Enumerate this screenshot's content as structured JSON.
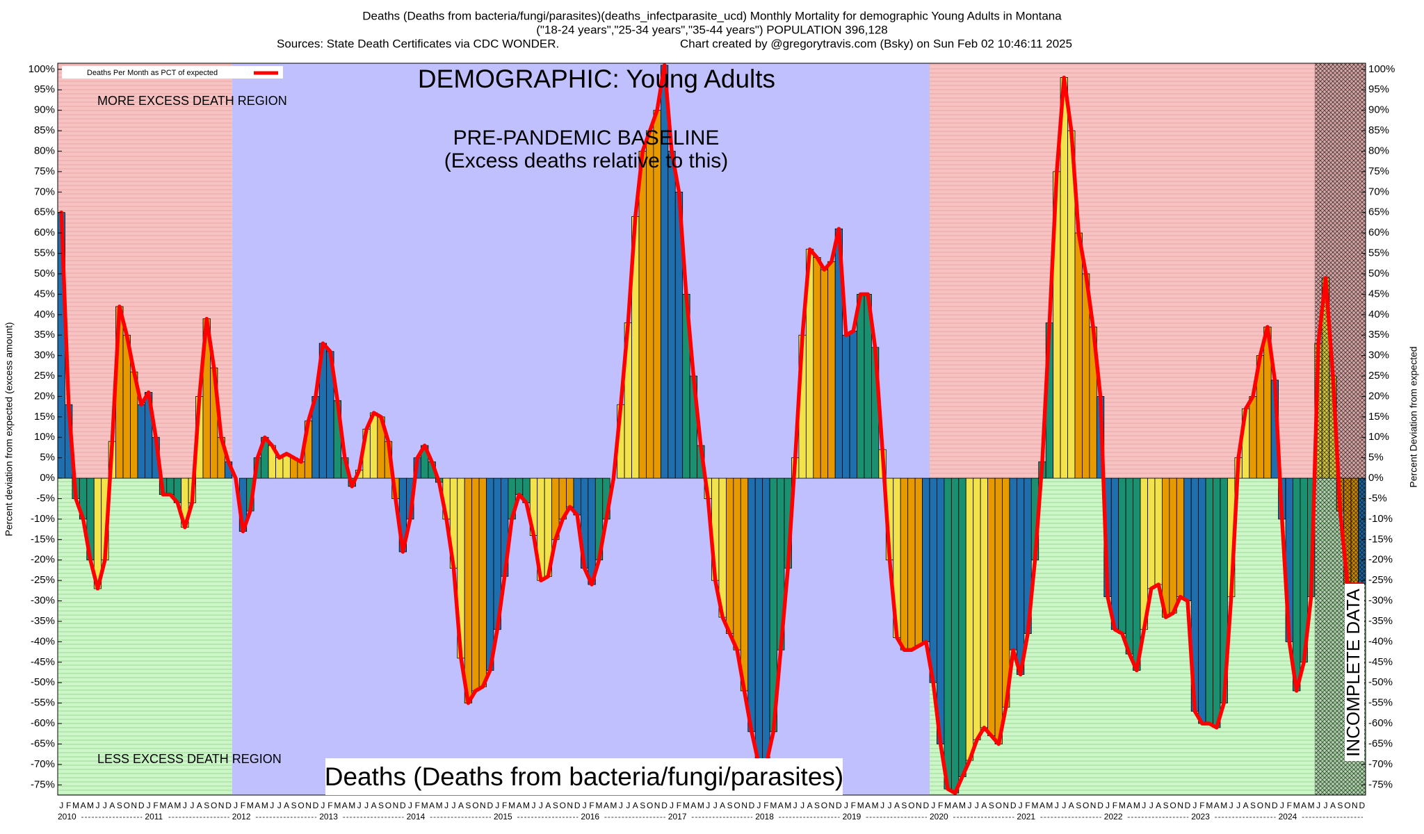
{
  "chart_data": {
    "type": "bar",
    "title": "Deaths (Deaths from bacteria/fungi/parasites)(deaths_infectparasite_ucd) Monthly Mortality for demographic Young Adults in Montana",
    "subtitle": "(\"18-24 years\",\"25-34 years\",\"35-44 years\") POPULATION 396,128",
    "sources": "Sources: State Death Certificates via CDC WONDER.",
    "credit": "Chart created by @gregorytravis.com (Bsky) on Sun Feb 02 10:46:11 2025",
    "demographic_label": "DEMOGRAPHIC: Young Adults",
    "baseline_label": "PRE-PANDEMIC BASELINE",
    "baseline_note": "(Excess deaths relative to this)",
    "more_region_label": "MORE EXCESS DEATH REGION",
    "less_region_label": "LESS EXCESS DEATH REGION",
    "cause_label": "Deaths (Deaths from bacteria/fungi/parasites)",
    "incomplete_label": "INCOMPLETE DATA",
    "legend_label": "Deaths Per Month as PCT of expected",
    "line_color": "#ff0000",
    "y_label": "Percent deviation from expected (excess amount)",
    "y2_label": "Percent Deviation from expected",
    "months": [
      "J",
      "F",
      "M",
      "A",
      "M",
      "J",
      "J",
      "A",
      "S",
      "O",
      "N",
      "D"
    ],
    "years": [
      2010,
      2011,
      2012,
      2013,
      2014,
      2015,
      2016,
      2017,
      2018,
      2019,
      2020,
      2021,
      2022,
      2023,
      2024
    ],
    "month_colors": [
      "#1f6fae",
      "#1f6fae",
      "#1a9070",
      "#1a9070",
      "#1a9070",
      "#f2e24c",
      "#f2e24c",
      "#f2e24c",
      "#e69a00",
      "#e69a00",
      "#e69a00",
      "#1f6fae"
    ],
    "values": [
      65,
      18,
      -5,
      -10,
      -20,
      -27,
      -20,
      9,
      42,
      35,
      26,
      18,
      21,
      10,
      -4,
      -4,
      -6,
      -12,
      -6,
      20,
      39,
      27,
      10,
      4,
      0,
      -13,
      -8,
      5,
      10,
      8,
      5,
      6,
      5,
      4,
      14,
      20,
      33,
      31,
      19,
      5,
      -2,
      2,
      12,
      16,
      15,
      9,
      -5,
      -18,
      -10,
      5,
      8,
      4,
      -1,
      -10,
      -22,
      -44,
      -55,
      -52,
      -51,
      -47,
      -37,
      -24,
      -10,
      -4,
      -6,
      -14,
      -25,
      -24,
      -15,
      -10,
      -7,
      -9,
      -22,
      -26,
      -20,
      -10,
      0,
      18,
      38,
      64,
      80,
      85,
      90,
      101,
      80,
      70,
      45,
      25,
      8,
      -5,
      -25,
      -34,
      -38,
      -42,
      -52,
      -62,
      -70,
      -70,
      -62,
      -42,
      -22,
      5,
      35,
      56,
      54,
      51,
      53,
      61,
      35,
      36,
      45,
      45,
      32,
      7,
      -20,
      -39,
      -42,
      -42,
      -41,
      -40,
      -50,
      -65,
      -76,
      -77,
      -73,
      -69,
      -64,
      -61,
      -63,
      -65,
      -56,
      -42,
      -48,
      -38,
      -20,
      4,
      38,
      75,
      98,
      85,
      60,
      50,
      37,
      20,
      -29,
      -37,
      -38,
      -43,
      -47,
      -37,
      -27,
      -26,
      -34,
      -33,
      -29,
      -30,
      -57,
      -60,
      -60,
      -61,
      -55,
      -29,
      5,
      17,
      20,
      30,
      37,
      24,
      -10,
      -40,
      -52,
      -45,
      -29,
      33,
      49,
      25,
      -8,
      -26,
      -26,
      -26
    ],
    "ylim": [
      -77.5,
      101.5
    ],
    "yticks": [
      {
        "value": 100,
        "label": "100%"
      },
      {
        "value": 95,
        "label": "95%"
      },
      {
        "value": 90,
        "label": "90%"
      },
      {
        "value": 85,
        "label": "85%"
      },
      {
        "value": 80,
        "label": "80%"
      },
      {
        "value": 75,
        "label": "75%"
      },
      {
        "value": 70,
        "label": "70%"
      },
      {
        "value": 65,
        "label": "65%"
      },
      {
        "value": 60,
        "label": "60%"
      },
      {
        "value": 55,
        "label": "55%"
      },
      {
        "value": 50,
        "label": "50%"
      },
      {
        "value": 45,
        "label": "45%"
      },
      {
        "value": 40,
        "label": "40%"
      },
      {
        "value": 35,
        "label": "35%"
      },
      {
        "value": 30,
        "label": "30%"
      },
      {
        "value": 25,
        "label": "25%"
      },
      {
        "value": 20,
        "label": "20%"
      },
      {
        "value": 15,
        "label": "15%"
      },
      {
        "value": 10,
        "label": "10%"
      },
      {
        "value": 5,
        "label": "5%"
      },
      {
        "value": 0,
        "label": "0%"
      },
      {
        "value": -5,
        "label": "-5%"
      },
      {
        "value": -10,
        "label": "-10%"
      },
      {
        "value": -15,
        "label": "-15%"
      },
      {
        "value": -20,
        "label": "-20%"
      },
      {
        "value": -25,
        "label": "-25%"
      },
      {
        "value": -30,
        "label": "-30%"
      },
      {
        "value": -35,
        "label": "-35%"
      },
      {
        "value": -40,
        "label": "-40%"
      },
      {
        "value": -45,
        "label": "-45%"
      },
      {
        "value": -50,
        "label": "-50%"
      },
      {
        "value": -55,
        "label": "-55%"
      },
      {
        "value": -60,
        "label": "-60%"
      },
      {
        "value": -65,
        "label": "-65%"
      },
      {
        "value": -70,
        "label": "-70%"
      },
      {
        "value": -75,
        "label": "-75%"
      }
    ]
  }
}
